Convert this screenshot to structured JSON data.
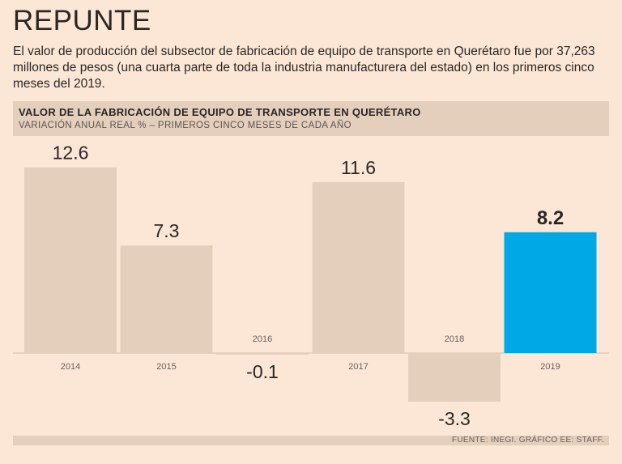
{
  "headline": "REPUNTE",
  "intro": "El valor de producción del subsector de fabricación de equipo de transporte en Querétaro fue por 37,263 millones de pesos (una cuarta parte de toda la industria manufacturera del estado) en los primeros cinco meses del 2019.",
  "colors": {
    "bar": "#e4cfbd",
    "highlight": "#00a9e6",
    "baseline": "#d2bcab",
    "text": "#2b2623",
    "year_label": "#6a605a"
  },
  "chart_data": {
    "type": "bar",
    "title": "VALOR DE LA FABRICACIÓN DE EQUIPO DE TRANSPORTE EN QUERÉTARO",
    "subtitle": "VARIACIÓN ANUAL REAL % – PRIMEROS CINCO MESES DE CADA AÑO",
    "categories": [
      "2014",
      "2015",
      "2016",
      "2017",
      "2018",
      "2019"
    ],
    "values": [
      12.6,
      7.3,
      -0.1,
      11.6,
      -3.3,
      8.2
    ],
    "value_labels": [
      "12.6",
      "7.3",
      "-0.1",
      "11.6",
      "-3.3",
      "8.2"
    ],
    "highlight_category": "2019",
    "xlabel": "",
    "ylabel": "",
    "ylim": [
      -3.3,
      12.6
    ],
    "grid": false
  },
  "source": "FUENTE: INEGI. GRÁFICO EE: STAFF."
}
